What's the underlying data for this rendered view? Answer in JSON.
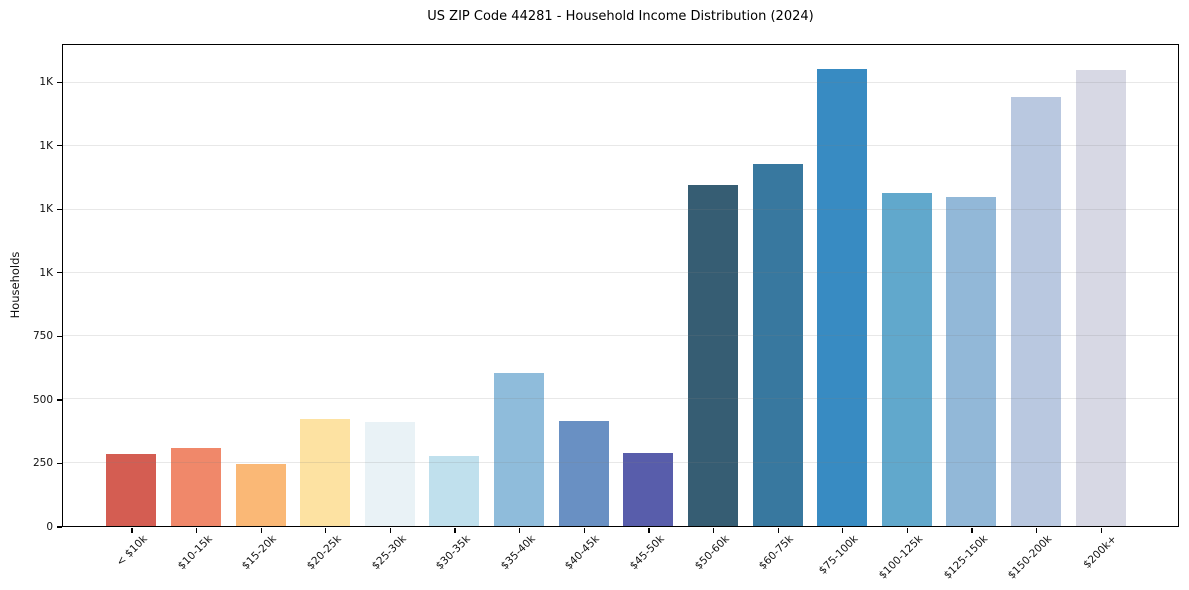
{
  "chart_data": {
    "type": "bar",
    "title": "US ZIP Code 44281 - Household Income Distribution (2024)",
    "xlabel": "",
    "ylabel": "Households",
    "categories": [
      "< $10k",
      "$10-15k",
      "$15-20k",
      "$20-25k",
      "$25-30k",
      "$30-35k",
      "$35-40k",
      "$40-45k",
      "$45-50k",
      "$50-60k",
      "$60-75k",
      "$75-100k",
      "$100-125k",
      "$125-150k",
      "$150-200k",
      "$200k+"
    ],
    "values": [
      285,
      308,
      245,
      424,
      409,
      278,
      605,
      416,
      290,
      1349,
      1431,
      1807,
      1315,
      1299,
      1696,
      1803
    ],
    "bar_colors": [
      "#d45d52",
      "#f0886a",
      "#fab876",
      "#fde2a2",
      "#e9f2f6",
      "#c0e0ed",
      "#8fbcdb",
      "#6990c3",
      "#585dab",
      "#365d73",
      "#38789f",
      "#388bc2",
      "#61a8cc",
      "#92b8d8",
      "#b9c8e0",
      "#d7d8e4"
    ],
    "y_ticks": [
      {
        "value": 0,
        "label": "0"
      },
      {
        "value": 250,
        "label": "250"
      },
      {
        "value": 500,
        "label": "500"
      },
      {
        "value": 750,
        "label": "750"
      },
      {
        "value": 1000,
        "label": "1K"
      },
      {
        "value": 1250,
        "label": "1K"
      },
      {
        "value": 1500,
        "label": "1K"
      },
      {
        "value": 1750,
        "label": "1K"
      }
    ],
    "ylim": [
      0,
      1900
    ],
    "grid": "horizontal",
    "legend_position": "none"
  },
  "colors": {
    "background": "#ffffff",
    "spine": "#000000",
    "gridline": "rgba(128,128,128,0.18)",
    "text": "#111111"
  }
}
